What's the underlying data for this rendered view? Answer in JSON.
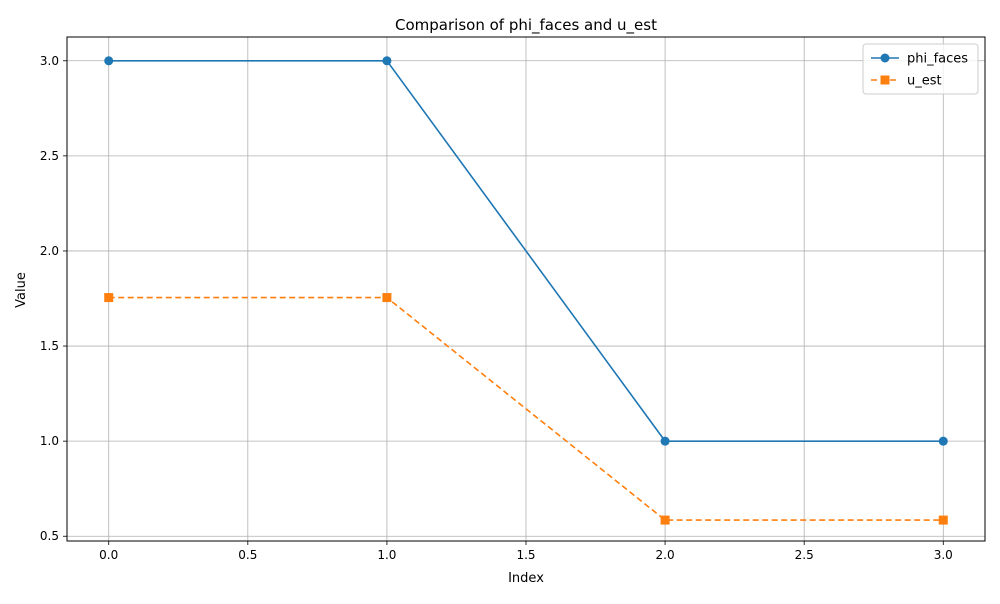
{
  "chart_data": {
    "type": "line",
    "title": "Comparison of phi_faces and u_est",
    "xlabel": "Index",
    "ylabel": "Value",
    "x": [
      0,
      1,
      2,
      3
    ],
    "xlim": [
      -0.15,
      3.15
    ],
    "ylim": [
      0.475,
      3.125
    ],
    "xticks": [
      0.0,
      0.5,
      1.0,
      1.5,
      2.0,
      2.5,
      3.0
    ],
    "xtick_labels": [
      "0.0",
      "0.5",
      "1.0",
      "1.5",
      "2.0",
      "2.5",
      "3.0"
    ],
    "yticks": [
      0.5,
      1.0,
      1.5,
      2.0,
      2.5,
      3.0
    ],
    "ytick_labels": [
      "0.5",
      "1.0",
      "1.5",
      "2.0",
      "2.5",
      "3.0"
    ],
    "grid": true,
    "legend_position": "top-right",
    "series": [
      {
        "name": "phi_faces",
        "values": [
          3.0,
          3.0,
          1.0,
          1.0
        ],
        "color": "#1f77b4",
        "line_style": "solid",
        "marker": "circle"
      },
      {
        "name": "u_est",
        "values": [
          1.755,
          1.755,
          0.585,
          0.585
        ],
        "color": "#ff7f0e",
        "line_style": "dashed",
        "marker": "square"
      }
    ]
  }
}
